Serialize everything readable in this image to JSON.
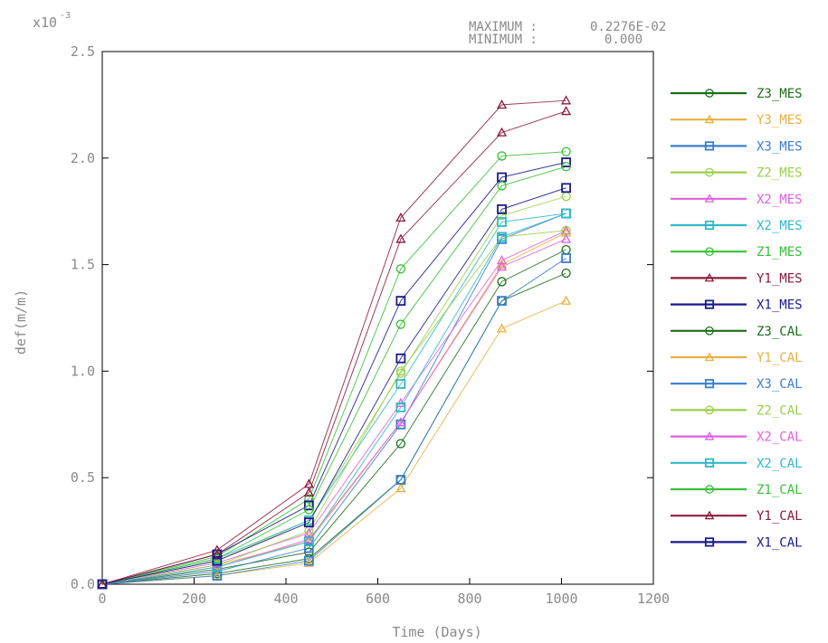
{
  "chart_data": {
    "type": "line",
    "title": "",
    "xlabel": "Time (Days)",
    "ylabel": "def(m/m)",
    "y_multiplier_label": "x10",
    "y_multiplier_exp": "-3",
    "header": {
      "maximum_label": "MAXIMUM :",
      "maximum_value": "0.2276E-02",
      "minimum_label": "MINIMUM :",
      "minimum_value": "0.000"
    },
    "xlim": [
      0,
      1200
    ],
    "ylim": [
      0,
      2.5
    ],
    "xticks": [
      "0",
      "200",
      "400",
      "600",
      "800",
      "1000",
      "1200"
    ],
    "yticks": [
      "0.0",
      "0.5",
      "1.0",
      "1.5",
      "2.0",
      "2.5"
    ],
    "x": [
      0,
      250,
      450,
      650,
      870,
      1010
    ],
    "grid": false,
    "legend_position": "right",
    "series": [
      {
        "name": "Z3_MES",
        "color": "#1a6e1a",
        "marker": "circle",
        "values": [
          0,
          0.07,
          0.15,
          0.66,
          1.42,
          1.57
        ]
      },
      {
        "name": "Y3_MES",
        "color": "#e8b040",
        "marker": "triangle",
        "values": [
          0,
          0.09,
          0.2,
          0.76,
          1.5,
          1.65
        ]
      },
      {
        "name": "X3_MES",
        "color": "#3a7fd0",
        "marker": "square",
        "values": [
          0,
          0.06,
          0.17,
          0.75,
          1.62,
          1.74
        ]
      },
      {
        "name": "Z2_MES",
        "color": "#9ad04a",
        "marker": "circle",
        "values": [
          0,
          0.11,
          0.3,
          0.99,
          1.73,
          1.82
        ]
      },
      {
        "name": "X2_MES",
        "color": "#e060e0",
        "marker": "triangle",
        "values": [
          0,
          0.1,
          0.24,
          0.85,
          1.52,
          1.66
        ]
      },
      {
        "name": "X2_MES",
        "color": "#30b8c8",
        "marker": "square",
        "values": [
          0,
          0.12,
          0.3,
          0.94,
          1.7,
          1.74
        ]
      },
      {
        "name": "Z1_MES",
        "color": "#38c038",
        "marker": "circle",
        "values": [
          0,
          0.13,
          0.4,
          1.48,
          2.01,
          2.03
        ]
      },
      {
        "name": "Y1_MES",
        "color": "#8b1a3a",
        "marker": "triangle",
        "values": [
          0,
          0.16,
          0.47,
          1.72,
          2.25,
          2.27
        ]
      },
      {
        "name": "X1_MES",
        "color": "#1a1a8a",
        "marker": "square",
        "values": [
          0,
          0.14,
          0.37,
          1.33,
          1.91,
          1.98
        ]
      },
      {
        "name": "Z3_CAL",
        "color": "#1a6e1a",
        "marker": "circle",
        "values": [
          0,
          0.05,
          0.12,
          0.49,
          1.33,
          1.46
        ]
      },
      {
        "name": "Y1_CAL",
        "color": "#e8b040",
        "marker": "triangle",
        "values": [
          0,
          0.04,
          0.1,
          0.45,
          1.2,
          1.33
        ]
      },
      {
        "name": "X3_CAL",
        "color": "#3a7fd0",
        "marker": "square",
        "values": [
          0,
          0.04,
          0.11,
          0.49,
          1.33,
          1.53
        ]
      },
      {
        "name": "Z2_CAL",
        "color": "#9ad04a",
        "marker": "circle",
        "values": [
          0,
          0.09,
          0.25,
          1.0,
          1.63,
          1.66
        ]
      },
      {
        "name": "X2_CAL",
        "color": "#e060e0",
        "marker": "triangle",
        "values": [
          0,
          0.08,
          0.21,
          0.76,
          1.49,
          1.62
        ]
      },
      {
        "name": "X2_CAL",
        "color": "#30b8c8",
        "marker": "square",
        "values": [
          0,
          0.08,
          0.2,
          0.83,
          1.63,
          1.74
        ]
      },
      {
        "name": "Z1_CAL",
        "color": "#38c038",
        "marker": "circle",
        "values": [
          0,
          0.12,
          0.35,
          1.22,
          1.87,
          1.96
        ]
      },
      {
        "name": "Y1_CAL",
        "color": "#8b1a3a",
        "marker": "triangle",
        "values": [
          0,
          0.14,
          0.43,
          1.62,
          2.12,
          2.22
        ]
      },
      {
        "name": "X1_CAL",
        "color": "#1a1a8a",
        "marker": "square",
        "values": [
          0,
          0.11,
          0.29,
          1.06,
          1.76,
          1.86
        ]
      }
    ]
  }
}
